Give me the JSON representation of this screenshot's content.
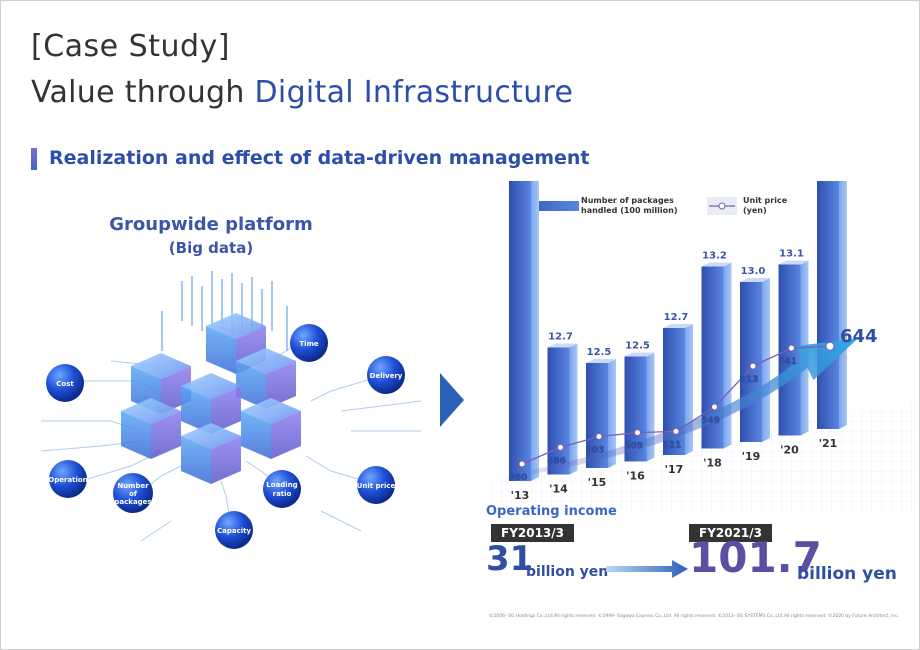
{
  "header": {
    "title_line1": "[Case Study]",
    "title_line2_prefix": "Value through ",
    "title_line2_accent": "Digital Infrastructure",
    "subtitle": "Realization and effect of data-driven management"
  },
  "platform": {
    "title": "Groupwide platform",
    "subtitle": "(Big data)",
    "nodes": [
      "Time",
      "Delivery",
      "Cost",
      "Operation",
      "Number of packages",
      "Loading ratio",
      "Unit price",
      "Capacity"
    ]
  },
  "chart_data": {
    "type": "bar",
    "categories": [
      "'13",
      "'14",
      "'15",
      "'16",
      "'17",
      "'18",
      "'19",
      "'20",
      "'21"
    ],
    "series": [
      {
        "name": "Number of packages handled (100 million)",
        "type": "bar",
        "values": [
          14.3,
          12.7,
          12.5,
          12.5,
          12.7,
          13.2,
          13.0,
          13.1,
          14.0
        ]
      },
      {
        "name": "Unit price (yen)",
        "type": "line",
        "values": [
          460,
          486,
          503,
          509,
          511,
          549,
          613,
          641,
          644
        ]
      }
    ],
    "legend": {
      "packages": "Number of packages handled (100 million)",
      "price": "Unit price (yen)"
    },
    "legend_position": "top"
  },
  "operating_income": {
    "label": "Operating income",
    "from_year": "FY2013/3",
    "from_value": "31",
    "from_unit": "billion yen",
    "to_year": "FY2021/3",
    "to_value": "101.7",
    "to_unit": "billion yen"
  },
  "footer": {
    "copyright": "©2006- SG Holdings Co.,Ltd.All rights reserved.  ©1999- Sagawa Express Co.,Ltd.  All rights reserved.  ©2013- SG SYSTEMS Co.,Ltd.All rights reserved.  ©2020 by Future Architect, Inc."
  },
  "colors": {
    "accent": "#2b4fa8",
    "bar": "#3b5fc0",
    "line": "#7a5fb8",
    "arrow": "#2fa6e6"
  }
}
